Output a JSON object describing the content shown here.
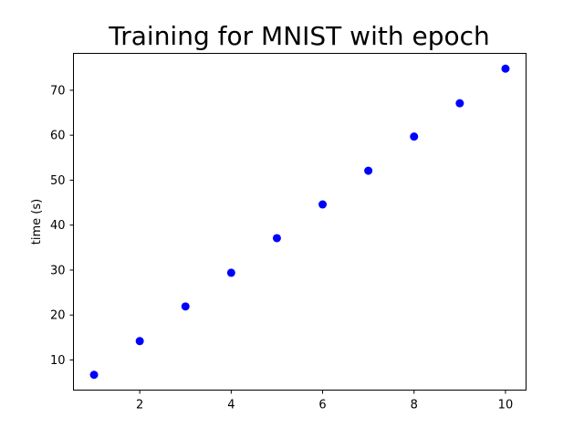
{
  "chart_data": {
    "type": "scatter",
    "title": "Training for MNIST with epoch",
    "xlabel": "",
    "ylabel": "time (s)",
    "xlim": [
      0.55,
      10.45
    ],
    "ylim": [
      3.3,
      78.2
    ],
    "xticks": [
      2,
      4,
      6,
      8,
      10
    ],
    "yticks": [
      10,
      20,
      30,
      40,
      50,
      60,
      70
    ],
    "grid": false,
    "series": [
      {
        "color": "#0000ff",
        "marker": "circle",
        "x": [
          1,
          2,
          3,
          4,
          5,
          6,
          7,
          8,
          9,
          10
        ],
        "y": [
          6.7,
          14.2,
          21.9,
          29.4,
          37.1,
          44.6,
          52.1,
          59.7,
          67.1,
          74.8
        ]
      }
    ]
  }
}
